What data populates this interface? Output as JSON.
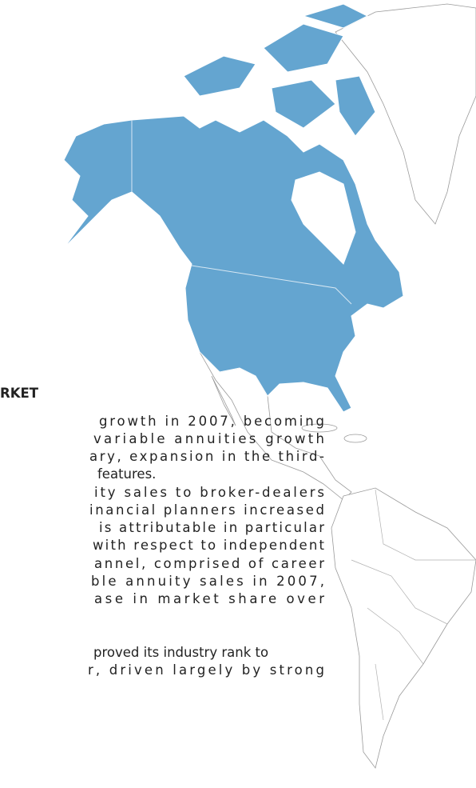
{
  "heading": "RKET",
  "paragraph_lines": [
    "growth in 2007, becoming",
    "variable annuities growth",
    "ary, expansion in the third-",
    "features.",
    "ity sales to broker-dealers",
    "inancial planners increased",
    "is attributable in particular",
    "with respect to independent",
    "annel, comprised of career",
    "ble annuity sales in 2007,",
    "ase in market share over",
    "proved its industry rank to",
    "r, driven largely by strong"
  ]
}
